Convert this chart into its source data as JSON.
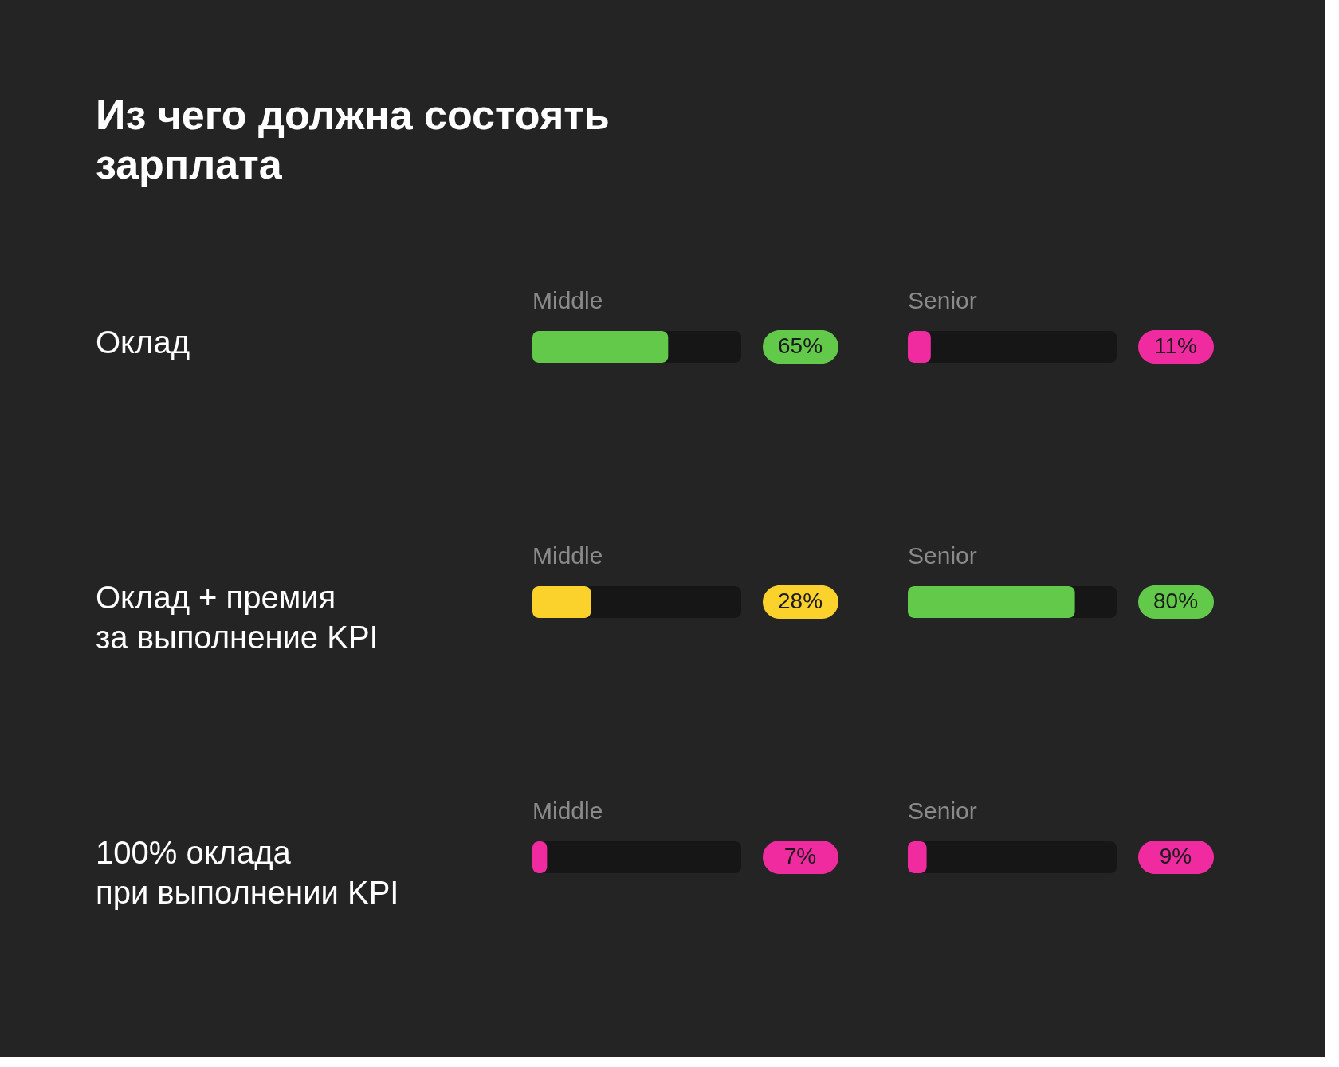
{
  "chart_data": [
    {
      "type": "bar",
      "orientation": "horizontal",
      "title": "Из чего должна состоять\nзарплата",
      "categories": [
        "Оклад",
        "Оклад + премия\nза выполнение KPI",
        "100% оклада\nпри выполнении KPI"
      ],
      "xlim": [
        0,
        100
      ],
      "tick_labels": "y",
      "legend": false,
      "series": [
        {
          "name": "Middle",
          "colors": [
            "#62c94b",
            "#fbd12c",
            "#f02ba0"
          ],
          "values": [
            65,
            28,
            7
          ],
          "value_labels": [
            "65%",
            "28%",
            "7%"
          ]
        }
      ]
    },
    {
      "type": "bar",
      "orientation": "horizontal",
      "categories": [
        null,
        null,
        null
      ],
      "xlim": [
        0,
        100
      ],
      "tick_labels": false,
      "legend": false,
      "series": [
        {
          "name": "Senior",
          "colors": [
            "#f02ba0",
            "#62c94b",
            "#f02ba0"
          ],
          "values": [
            11,
            80,
            9
          ],
          "value_labels": [
            "11%",
            "80%",
            "9%"
          ]
        }
      ]
    }
  ]
}
